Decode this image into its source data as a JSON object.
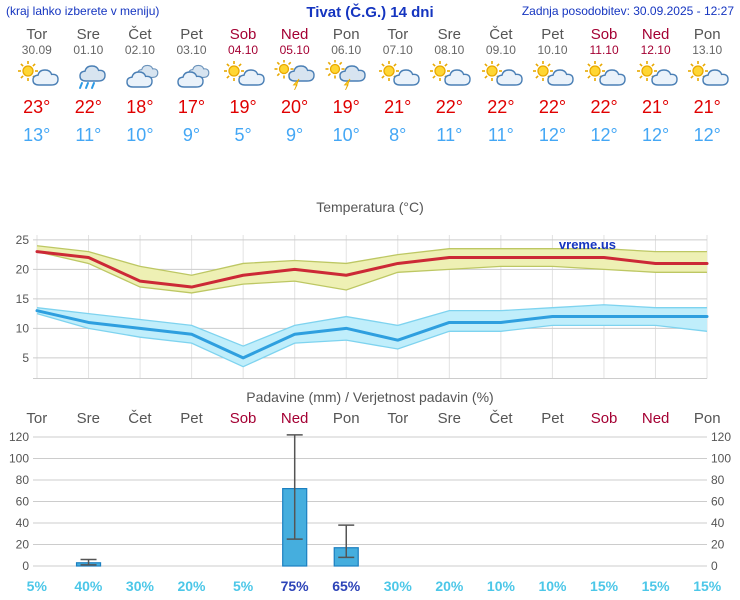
{
  "header": {
    "note": "(kraj lahko izberete v meniju)",
    "title": "Tivat (Č.G.) 14 dni",
    "updated": "Zadnja posodobitev: 30.09.2025 - 12:27"
  },
  "colors": {
    "accent_blue": "#1535c0",
    "weekend_red": "#a40033",
    "weekday_gray": "#555555",
    "max_temp_red": "#e00000",
    "min_temp_blue": "#44a7f5",
    "probability_cyan": "#4cc7e8",
    "probability_strong_blue": "#2c43b8",
    "bar_fill": "#45aede",
    "bar_stroke": "#1b7fc0",
    "grid_gray": "#cccccc"
  },
  "forecast": {
    "days": [
      {
        "name": "Tor",
        "date": "30.09",
        "weekend": false,
        "icon": "partly-cloudy",
        "tmax": "23°",
        "tmin": "13°"
      },
      {
        "name": "Sre",
        "date": "01.10",
        "weekend": false,
        "icon": "rain",
        "tmax": "22°",
        "tmin": "11°"
      },
      {
        "name": "Čet",
        "date": "02.10",
        "weekend": false,
        "icon": "cloudy",
        "tmax": "18°",
        "tmin": "10°"
      },
      {
        "name": "Pet",
        "date": "03.10",
        "weekend": false,
        "icon": "cloudy",
        "tmax": "17°",
        "tmin": "9°"
      },
      {
        "name": "Sob",
        "date": "04.10",
        "weekend": true,
        "icon": "partly-cloudy",
        "tmax": "19°",
        "tmin": "5°"
      },
      {
        "name": "Ned",
        "date": "05.10",
        "weekend": true,
        "icon": "thunderstorm",
        "tmax": "20°",
        "tmin": "9°"
      },
      {
        "name": "Pon",
        "date": "06.10",
        "weekend": false,
        "icon": "thunderstorm",
        "tmax": "19°",
        "tmin": "10°"
      },
      {
        "name": "Tor",
        "date": "07.10",
        "weekend": false,
        "icon": "partly-cloudy",
        "tmax": "21°",
        "tmin": "8°"
      },
      {
        "name": "Sre",
        "date": "08.10",
        "weekend": false,
        "icon": "partly-cloudy",
        "tmax": "22°",
        "tmin": "11°"
      },
      {
        "name": "Čet",
        "date": "09.10",
        "weekend": false,
        "icon": "partly-cloudy",
        "tmax": "22°",
        "tmin": "11°"
      },
      {
        "name": "Pet",
        "date": "10.10",
        "weekend": false,
        "icon": "partly-cloudy",
        "tmax": "22°",
        "tmin": "12°"
      },
      {
        "name": "Sob",
        "date": "11.10",
        "weekend": true,
        "icon": "partly-cloudy",
        "tmax": "22°",
        "tmin": "12°"
      },
      {
        "name": "Ned",
        "date": "12.10",
        "weekend": true,
        "icon": "partly-cloudy",
        "tmax": "21°",
        "tmin": "12°"
      },
      {
        "name": "Pon",
        "date": "13.10",
        "weekend": false,
        "icon": "partly-cloudy",
        "tmax": "21°",
        "tmin": "12°"
      }
    ]
  },
  "temp_chart": {
    "type": "line",
    "title": "Temperatura (°C)",
    "watermark": "vreme.us",
    "yticks": [
      5,
      10,
      15,
      20,
      25
    ],
    "ymin": 1.5,
    "ymax": 26.5,
    "series": [
      {
        "name": "max-temp",
        "line_color": "#cc2936",
        "band_color": "#eef0b4",
        "band_edge_color": "#bdc763",
        "values": [
          23,
          22,
          18,
          17,
          19,
          20,
          19,
          21,
          22,
          22,
          22,
          22,
          21,
          21
        ],
        "band_upper": [
          24,
          23,
          20.5,
          19,
          21,
          21.5,
          21,
          22.5,
          23.5,
          23.5,
          23.5,
          23.5,
          23,
          23
        ],
        "band_lower": [
          23,
          21,
          17,
          16,
          17.5,
          18,
          16.5,
          19.5,
          20,
          20.5,
          20.5,
          20,
          19.5,
          19.5
        ]
      },
      {
        "name": "min-temp",
        "line_color": "#2e9fdf",
        "band_color": "#c0eefb",
        "band_edge_color": "#7ed3ef",
        "values": [
          13,
          11,
          10,
          9,
          5,
          9,
          10,
          8,
          11,
          11,
          12,
          12,
          12,
          12
        ],
        "band_upper": [
          13.5,
          12.5,
          11.5,
          10.5,
          7,
          10.5,
          12,
          10.5,
          13,
          13,
          13.5,
          14,
          13.5,
          13.5
        ],
        "band_lower": [
          12.5,
          10,
          8.5,
          7.5,
          3.5,
          7.5,
          8,
          6.5,
          9.5,
          9.5,
          10.5,
          10.5,
          10.5,
          9.5
        ]
      }
    ]
  },
  "precip_chart": {
    "type": "bar",
    "title": "Padavine (mm) / Verjetnost padavin (%)",
    "yticks": [
      0,
      20,
      40,
      60,
      80,
      100,
      120
    ],
    "ymin": 0,
    "ymax": 120,
    "days": [
      {
        "name": "Tor",
        "weekend": false
      },
      {
        "name": "Sre",
        "weekend": false
      },
      {
        "name": "Čet",
        "weekend": false
      },
      {
        "name": "Pet",
        "weekend": false
      },
      {
        "name": "Sob",
        "weekend": true
      },
      {
        "name": "Ned",
        "weekend": true
      },
      {
        "name": "Pon",
        "weekend": false
      },
      {
        "name": "Tor",
        "weekend": false
      },
      {
        "name": "Sre",
        "weekend": false
      },
      {
        "name": "Čet",
        "weekend": false
      },
      {
        "name": "Pet",
        "weekend": false
      },
      {
        "name": "Sob",
        "weekend": true
      },
      {
        "name": "Ned",
        "weekend": true
      },
      {
        "name": "Pon",
        "weekend": false
      }
    ],
    "bars": [
      0,
      3,
      0,
      0,
      0,
      72,
      17,
      0,
      0,
      0,
      0,
      0,
      0,
      0
    ],
    "whiskers": [
      null,
      {
        "low": 1,
        "high": 6
      },
      null,
      null,
      null,
      {
        "low": 25,
        "high": 122
      },
      {
        "low": 8,
        "high": 38
      },
      null,
      null,
      null,
      null,
      null,
      null,
      null
    ],
    "probabilities": [
      {
        "label": "5%",
        "strong": false
      },
      {
        "label": "40%",
        "strong": false
      },
      {
        "label": "30%",
        "strong": false
      },
      {
        "label": "20%",
        "strong": false
      },
      {
        "label": "5%",
        "strong": false
      },
      {
        "label": "75%",
        "strong": true
      },
      {
        "label": "65%",
        "strong": true
      },
      {
        "label": "30%",
        "strong": false
      },
      {
        "label": "20%",
        "strong": false
      },
      {
        "label": "10%",
        "strong": false
      },
      {
        "label": "10%",
        "strong": false
      },
      {
        "label": "15%",
        "strong": false
      },
      {
        "label": "15%",
        "strong": false
      },
      {
        "label": "15%",
        "strong": false
      }
    ]
  }
}
